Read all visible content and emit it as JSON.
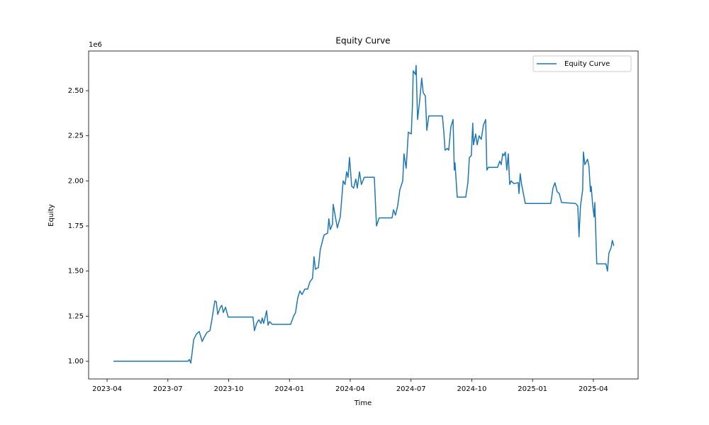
{
  "chart_data": {
    "type": "line",
    "title": "Equity Curve",
    "x_label": "Time",
    "y_label": "Equity",
    "y_offset_label": "1e6",
    "x": [
      2023.276,
      2023.582,
      2023.588,
      2023.594,
      2023.6,
      2023.606,
      2023.617,
      2023.629,
      2023.641,
      2023.652,
      2023.661,
      2023.673,
      2023.681,
      2023.693,
      2023.699,
      2023.705,
      2023.716,
      2023.722,
      2023.728,
      2023.737,
      2023.748,
      2023.85,
      2023.856,
      2023.865,
      2023.874,
      2023.883,
      2023.888,
      2023.894,
      2023.906,
      2023.912,
      2023.918,
      2023.929,
      2024.005,
      2024.017,
      2024.025,
      2024.034,
      2024.043,
      2024.052,
      2024.063,
      2024.075,
      2024.084,
      2024.095,
      2024.101,
      2024.107,
      2024.119,
      2024.127,
      2024.142,
      2024.157,
      2024.162,
      2024.168,
      2024.177,
      2024.18,
      2024.189,
      2024.197,
      2024.209,
      2024.221,
      2024.229,
      2024.235,
      2024.241,
      2024.247,
      2024.256,
      2024.264,
      2024.273,
      2024.279,
      2024.288,
      2024.296,
      2024.308,
      2024.349,
      2024.358,
      2024.369,
      2024.422,
      2024.428,
      2024.436,
      2024.445,
      2024.454,
      2024.466,
      2024.471,
      2024.48,
      2024.489,
      2024.501,
      2024.506,
      2024.509,
      2024.518,
      2024.521,
      2024.527,
      2024.536,
      2024.544,
      2024.55,
      2024.559,
      2024.565,
      2024.573,
      2024.629,
      2024.635,
      2024.64,
      2024.649,
      2024.655,
      2024.664,
      2024.673,
      2024.678,
      2024.681,
      2024.69,
      2024.725,
      2024.734,
      2024.74,
      2024.748,
      2024.754,
      2024.757,
      2024.766,
      2024.772,
      2024.78,
      2024.789,
      2024.798,
      2024.807,
      2024.812,
      2024.818,
      2024.856,
      2024.865,
      2024.871,
      2024.877,
      2024.882,
      2024.888,
      2024.894,
      2024.9,
      2024.906,
      2024.912,
      2024.923,
      2024.941,
      2024.944,
      2024.949,
      2024.955,
      2024.97,
      2025.075,
      2025.084,
      2025.092,
      2025.101,
      2025.11,
      2025.119,
      2025.177,
      2025.186,
      2025.191,
      2025.197,
      2025.206,
      2025.209,
      2025.215,
      2025.226,
      2025.232,
      2025.238,
      2025.241,
      2025.247,
      2025.253,
      2025.256,
      2025.264,
      2025.302,
      2025.308,
      2025.314,
      2025.323,
      2025.328,
      2025.334
    ],
    "series": [
      {
        "name": "Equity Curve",
        "color": "#1f77b4",
        "values": [
          1000000,
          1000000,
          1010000,
          990000,
          1050000,
          1120000,
          1150000,
          1165000,
          1110000,
          1140000,
          1160000,
          1170000,
          1230000,
          1335000,
          1330000,
          1260000,
          1300000,
          1310000,
          1270000,
          1300000,
          1245000,
          1245000,
          1170000,
          1210000,
          1230000,
          1210000,
          1240000,
          1210000,
          1280000,
          1200000,
          1220000,
          1205000,
          1205000,
          1250000,
          1270000,
          1350000,
          1390000,
          1370000,
          1400000,
          1400000,
          1440000,
          1460000,
          1580000,
          1510000,
          1520000,
          1620000,
          1700000,
          1710000,
          1790000,
          1730000,
          1760000,
          1870000,
          1800000,
          1740000,
          1800000,
          2000000,
          1980000,
          2050000,
          2020000,
          2130000,
          1970000,
          1960000,
          2010000,
          1960000,
          2050000,
          1980000,
          2020000,
          2020000,
          1750000,
          1795000,
          1795000,
          1840000,
          1810000,
          1860000,
          1950000,
          2000000,
          2150000,
          2070000,
          2270000,
          2260000,
          2420000,
          2610000,
          2590000,
          2640000,
          2340000,
          2450000,
          2570000,
          2490000,
          2470000,
          2280000,
          2360000,
          2360000,
          2270000,
          2170000,
          2180000,
          2170000,
          2300000,
          2340000,
          2060000,
          2100000,
          1910000,
          1910000,
          1990000,
          2130000,
          2140000,
          2320000,
          2200000,
          2260000,
          2200000,
          2250000,
          2230000,
          2310000,
          2340000,
          2060000,
          2075000,
          2075000,
          2110000,
          2090000,
          2150000,
          2140000,
          2160000,
          2060000,
          2150000,
          1980000,
          2000000,
          1985000,
          1990000,
          1930000,
          2040000,
          1980000,
          1875000,
          1875000,
          1960000,
          1990000,
          1940000,
          1930000,
          1880000,
          1875000,
          1860000,
          1690000,
          1860000,
          1950000,
          2160000,
          2090000,
          2120000,
          2080000,
          1940000,
          1970000,
          1870000,
          1800000,
          1880000,
          1540000,
          1540000,
          1500000,
          1600000,
          1630000,
          1670000,
          1640000
        ]
      }
    ],
    "xlim": [
      2023.174,
      2025.434
    ],
    "ylim": [
      902000,
      2720000
    ],
    "xticks": [
      {
        "value": 2023.25,
        "label": "2023-04"
      },
      {
        "value": 2023.5,
        "label": "2023-07"
      },
      {
        "value": 2023.75,
        "label": "2023-10"
      },
      {
        "value": 2024.0,
        "label": "2024-01"
      },
      {
        "value": 2024.25,
        "label": "2024-04"
      },
      {
        "value": 2024.5,
        "label": "2024-07"
      },
      {
        "value": 2024.75,
        "label": "2024-10"
      },
      {
        "value": 2025.0,
        "label": "2025-01"
      },
      {
        "value": 2025.25,
        "label": "2025-04"
      }
    ],
    "yticks": [
      {
        "value": 1000000,
        "label": "1.00"
      },
      {
        "value": 1250000,
        "label": "1.25"
      },
      {
        "value": 1500000,
        "label": "1.50"
      },
      {
        "value": 1750000,
        "label": "1.75"
      },
      {
        "value": 2000000,
        "label": "2.00"
      },
      {
        "value": 2250000,
        "label": "2.25"
      },
      {
        "value": 2500000,
        "label": "2.50"
      }
    ],
    "grid": false,
    "legend": "upper right"
  }
}
